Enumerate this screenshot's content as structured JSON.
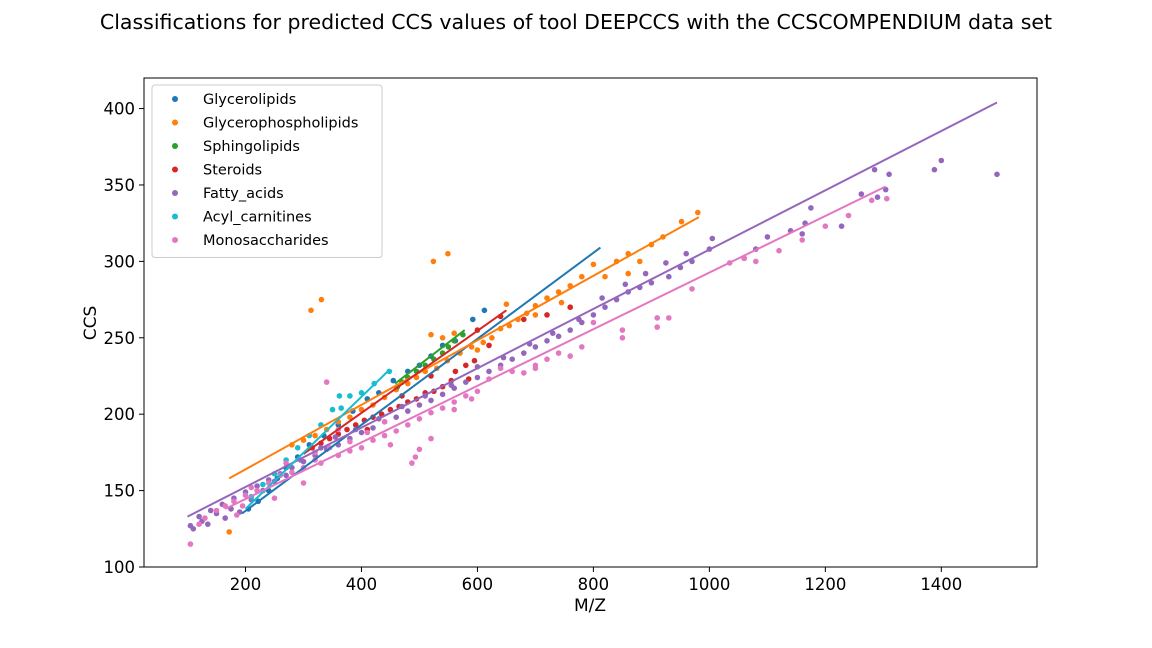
{
  "chart_data": {
    "type": "scatter",
    "title": "Classifications for predicted CCS values of tool DEEPCCS with the CCSCOMPENDIUM data set",
    "xlabel": "M/Z",
    "ylabel": "CCS",
    "xlim": [
      25,
      1565
    ],
    "ylim": [
      100,
      420
    ],
    "xticks": [
      200,
      400,
      600,
      800,
      1000,
      1200,
      1400
    ],
    "yticks": [
      100,
      150,
      200,
      250,
      300,
      350,
      400
    ],
    "grid": false,
    "legend_position": "top-left",
    "series": [
      {
        "name": "Glycerolipids",
        "color": "#1f77b4",
        "fit_line": [
          [
            194,
            135
          ],
          [
            812,
            309
          ]
        ],
        "points": [
          [
            612,
            268
          ],
          [
            592,
            262
          ],
          [
            562,
            248
          ],
          [
            540,
            245
          ],
          [
            520,
            238
          ],
          [
            500,
            232
          ],
          [
            480,
            228
          ],
          [
            455,
            222
          ],
          [
            430,
            214
          ],
          [
            410,
            210
          ],
          [
            385,
            202
          ],
          [
            360,
            193
          ],
          [
            335,
            186
          ],
          [
            310,
            180
          ],
          [
            290,
            172
          ],
          [
            270,
            165
          ],
          [
            255,
            158
          ],
          [
            240,
            150
          ],
          [
            222,
            143
          ],
          [
            205,
            138
          ]
        ]
      },
      {
        "name": "Glycerophospholipids",
        "color": "#ff7f0e",
        "fit_line": [
          [
            172,
            158
          ],
          [
            982,
            329
          ]
        ],
        "points": [
          [
            313,
            268
          ],
          [
            331,
            275
          ],
          [
            524,
            300
          ],
          [
            549,
            305
          ],
          [
            172,
            123
          ],
          [
            980,
            332
          ],
          [
            952,
            326
          ],
          [
            920,
            316
          ],
          [
            900,
            311
          ],
          [
            860,
            305
          ],
          [
            840,
            300
          ],
          [
            800,
            298
          ],
          [
            780,
            290
          ],
          [
            760,
            284
          ],
          [
            740,
            280
          ],
          [
            720,
            276
          ],
          [
            700,
            271
          ],
          [
            685,
            266
          ],
          [
            670,
            262
          ],
          [
            655,
            258
          ],
          [
            640,
            256
          ],
          [
            625,
            250
          ],
          [
            610,
            247
          ],
          [
            590,
            244
          ],
          [
            570,
            240
          ],
          [
            548,
            235
          ],
          [
            530,
            230
          ],
          [
            510,
            228
          ],
          [
            495,
            224
          ],
          [
            480,
            220
          ],
          [
            460,
            216
          ],
          [
            440,
            211
          ],
          [
            420,
            206
          ],
          [
            400,
            203
          ],
          [
            380,
            198
          ],
          [
            360,
            195
          ],
          [
            340,
            190
          ],
          [
            320,
            186
          ],
          [
            300,
            183
          ],
          [
            280,
            180
          ],
          [
            700,
            265
          ],
          [
            745,
            273
          ],
          [
            820,
            290
          ],
          [
            860,
            292
          ],
          [
            880,
            300
          ],
          [
            760,
            270
          ],
          [
            540,
            250
          ],
          [
            560,
            253
          ],
          [
            520,
            252
          ],
          [
            650,
            272
          ],
          [
            600,
            242
          ]
        ]
      },
      {
        "name": "Sphingolipids",
        "color": "#2ca02c",
        "fit_line": [
          [
            458,
            220
          ],
          [
            578,
            255
          ]
        ],
        "points": [
          [
            560,
            248
          ],
          [
            550,
            244
          ],
          [
            540,
            240
          ],
          [
            525,
            236
          ],
          [
            510,
            232
          ],
          [
            495,
            228
          ],
          [
            480,
            224
          ],
          [
            470,
            221
          ],
          [
            462,
            218
          ],
          [
            575,
            252
          ]
        ]
      },
      {
        "name": "Steroids",
        "color": "#d62728",
        "fit_line": [
          [
            300,
            174
          ],
          [
            650,
            268
          ]
        ],
        "points": [
          [
            595,
            235
          ],
          [
            585,
            223
          ],
          [
            580,
            232
          ],
          [
            562,
            228
          ],
          [
            555,
            222
          ],
          [
            540,
            218
          ],
          [
            525,
            215
          ],
          [
            510,
            214
          ],
          [
            495,
            210
          ],
          [
            480,
            208
          ],
          [
            465,
            205
          ],
          [
            450,
            203
          ],
          [
            435,
            200
          ],
          [
            420,
            198
          ],
          [
            405,
            196
          ],
          [
            390,
            193
          ],
          [
            375,
            190
          ],
          [
            360,
            187
          ],
          [
            345,
            184
          ],
          [
            330,
            181
          ],
          [
            315,
            178
          ],
          [
            620,
            245
          ],
          [
            640,
            264
          ],
          [
            680,
            262
          ],
          [
            720,
            265
          ],
          [
            760,
            270
          ],
          [
            600,
            255
          ],
          [
            470,
            212
          ],
          [
            520,
            225
          ],
          [
            410,
            190
          ]
        ]
      },
      {
        "name": "Fatty_acids",
        "color": "#9467bd",
        "fit_line": [
          [
            100,
            133
          ],
          [
            1496,
            404
          ]
        ],
        "points": [
          [
            1496,
            357
          ],
          [
            1400,
            366
          ],
          [
            1388,
            360
          ],
          [
            1304,
            347
          ],
          [
            1310,
            357
          ],
          [
            1285,
            360
          ],
          [
            1290,
            342
          ],
          [
            1262,
            344
          ],
          [
            1228,
            323
          ],
          [
            1175,
            335
          ],
          [
            1165,
            325
          ],
          [
            1160,
            318
          ],
          [
            1140,
            320
          ],
          [
            1100,
            316
          ],
          [
            1080,
            308
          ],
          [
            1060,
            302
          ],
          [
            1005,
            315
          ],
          [
            1000,
            308
          ],
          [
            970,
            300
          ],
          [
            950,
            296
          ],
          [
            930,
            290
          ],
          [
            900,
            286
          ],
          [
            880,
            283
          ],
          [
            860,
            280
          ],
          [
            840,
            275
          ],
          [
            820,
            270
          ],
          [
            800,
            265
          ],
          [
            780,
            260
          ],
          [
            760,
            255
          ],
          [
            740,
            251
          ],
          [
            720,
            248
          ],
          [
            700,
            244
          ],
          [
            680,
            240
          ],
          [
            660,
            236
          ],
          [
            640,
            232
          ],
          [
            620,
            228
          ],
          [
            600,
            224
          ],
          [
            580,
            221
          ],
          [
            560,
            217
          ],
          [
            540,
            213
          ],
          [
            520,
            209
          ],
          [
            500,
            206
          ],
          [
            480,
            202
          ],
          [
            460,
            198
          ],
          [
            440,
            195
          ],
          [
            420,
            191
          ],
          [
            400,
            188
          ],
          [
            380,
            184
          ],
          [
            360,
            180
          ],
          [
            340,
            177
          ],
          [
            320,
            173
          ],
          [
            300,
            169
          ],
          [
            280,
            165
          ],
          [
            260,
            161
          ],
          [
            240,
            157
          ],
          [
            220,
            153
          ],
          [
            200,
            149
          ],
          [
            180,
            145
          ],
          [
            160,
            141
          ],
          [
            140,
            137
          ],
          [
            120,
            133
          ],
          [
            105,
            127
          ],
          [
            110,
            125
          ],
          [
            125,
            130
          ],
          [
            135,
            128
          ],
          [
            150,
            135
          ],
          [
            165,
            132
          ],
          [
            175,
            138
          ],
          [
            190,
            136
          ],
          [
            210,
            144
          ],
          [
            230,
            150
          ],
          [
            250,
            156
          ],
          [
            270,
            160
          ],
          [
            295,
            170
          ],
          [
            330,
            178
          ],
          [
            355,
            185
          ],
          [
            390,
            190
          ],
          [
            430,
            197
          ],
          [
            470,
            205
          ],
          [
            510,
            212
          ],
          [
            555,
            219
          ],
          [
            600,
            231
          ],
          [
            645,
            237
          ],
          [
            690,
            246
          ],
          [
            730,
            253
          ],
          [
            775,
            262
          ],
          [
            815,
            276
          ],
          [
            855,
            285
          ],
          [
            890,
            292
          ],
          [
            925,
            299
          ],
          [
            960,
            305
          ]
        ]
      },
      {
        "name": "Acyl_carnitines",
        "color": "#17becf",
        "fit_line": [
          [
            200,
            138
          ],
          [
            448,
            229
          ]
        ],
        "points": [
          [
            448,
            228
          ],
          [
            422,
            220
          ],
          [
            400,
            214
          ],
          [
            380,
            212
          ],
          [
            365,
            204
          ],
          [
            350,
            203
          ],
          [
            330,
            193
          ],
          [
            310,
            186
          ],
          [
            290,
            178
          ],
          [
            270,
            170
          ],
          [
            250,
            161
          ],
          [
            230,
            154
          ],
          [
            210,
            146
          ],
          [
            362,
            212
          ]
        ]
      },
      {
        "name": "Monosaccharides",
        "color": "#e377c2",
        "fit_line": [
          [
            165,
            138
          ],
          [
            1304,
            349
          ]
        ],
        "points": [
          [
            1306,
            341
          ],
          [
            1280,
            340
          ],
          [
            1240,
            330
          ],
          [
            1200,
            323
          ],
          [
            1160,
            314
          ],
          [
            1120,
            307
          ],
          [
            1080,
            300
          ],
          [
            1060,
            302
          ],
          [
            1035,
            299
          ],
          [
            930,
            263
          ],
          [
            910,
            257
          ],
          [
            850,
            250
          ],
          [
            800,
            260
          ],
          [
            780,
            244
          ],
          [
            760,
            238
          ],
          [
            740,
            240
          ],
          [
            720,
            236
          ],
          [
            700,
            232
          ],
          [
            680,
            227
          ],
          [
            660,
            228
          ],
          [
            640,
            230
          ],
          [
            620,
            223
          ],
          [
            600,
            215
          ],
          [
            580,
            212
          ],
          [
            560,
            208
          ],
          [
            540,
            204
          ],
          [
            520,
            201
          ],
          [
            500,
            197
          ],
          [
            480,
            193
          ],
          [
            460,
            189
          ],
          [
            440,
            186
          ],
          [
            420,
            183
          ],
          [
            400,
            178
          ],
          [
            380,
            176
          ],
          [
            360,
            173
          ],
          [
            340,
            221
          ],
          [
            330,
            168
          ],
          [
            320,
            170
          ],
          [
            300,
            165
          ],
          [
            280,
            162
          ],
          [
            260,
            160
          ],
          [
            240,
            155
          ],
          [
            220,
            150
          ],
          [
            200,
            147
          ],
          [
            180,
            143
          ],
          [
            165,
            140
          ],
          [
            150,
            137
          ],
          [
            130,
            132
          ],
          [
            120,
            128
          ],
          [
            105,
            115
          ],
          [
            487,
            168
          ],
          [
            493,
            172
          ],
          [
            500,
            177
          ],
          [
            440,
            195
          ],
          [
            360,
            190
          ],
          [
            300,
            155
          ],
          [
            250,
            145
          ],
          [
            195,
            140
          ],
          [
            185,
            134
          ],
          [
            210,
            152
          ],
          [
            270,
            168
          ],
          [
            320,
            175
          ],
          [
            345,
            178
          ],
          [
            380,
            182
          ],
          [
            410,
            188
          ],
          [
            450,
            180
          ],
          [
            520,
            184
          ],
          [
            560,
            203
          ],
          [
            590,
            210
          ],
          [
            700,
            230
          ],
          [
            850,
            255
          ],
          [
            910,
            263
          ],
          [
            970,
            282
          ]
        ]
      }
    ]
  }
}
